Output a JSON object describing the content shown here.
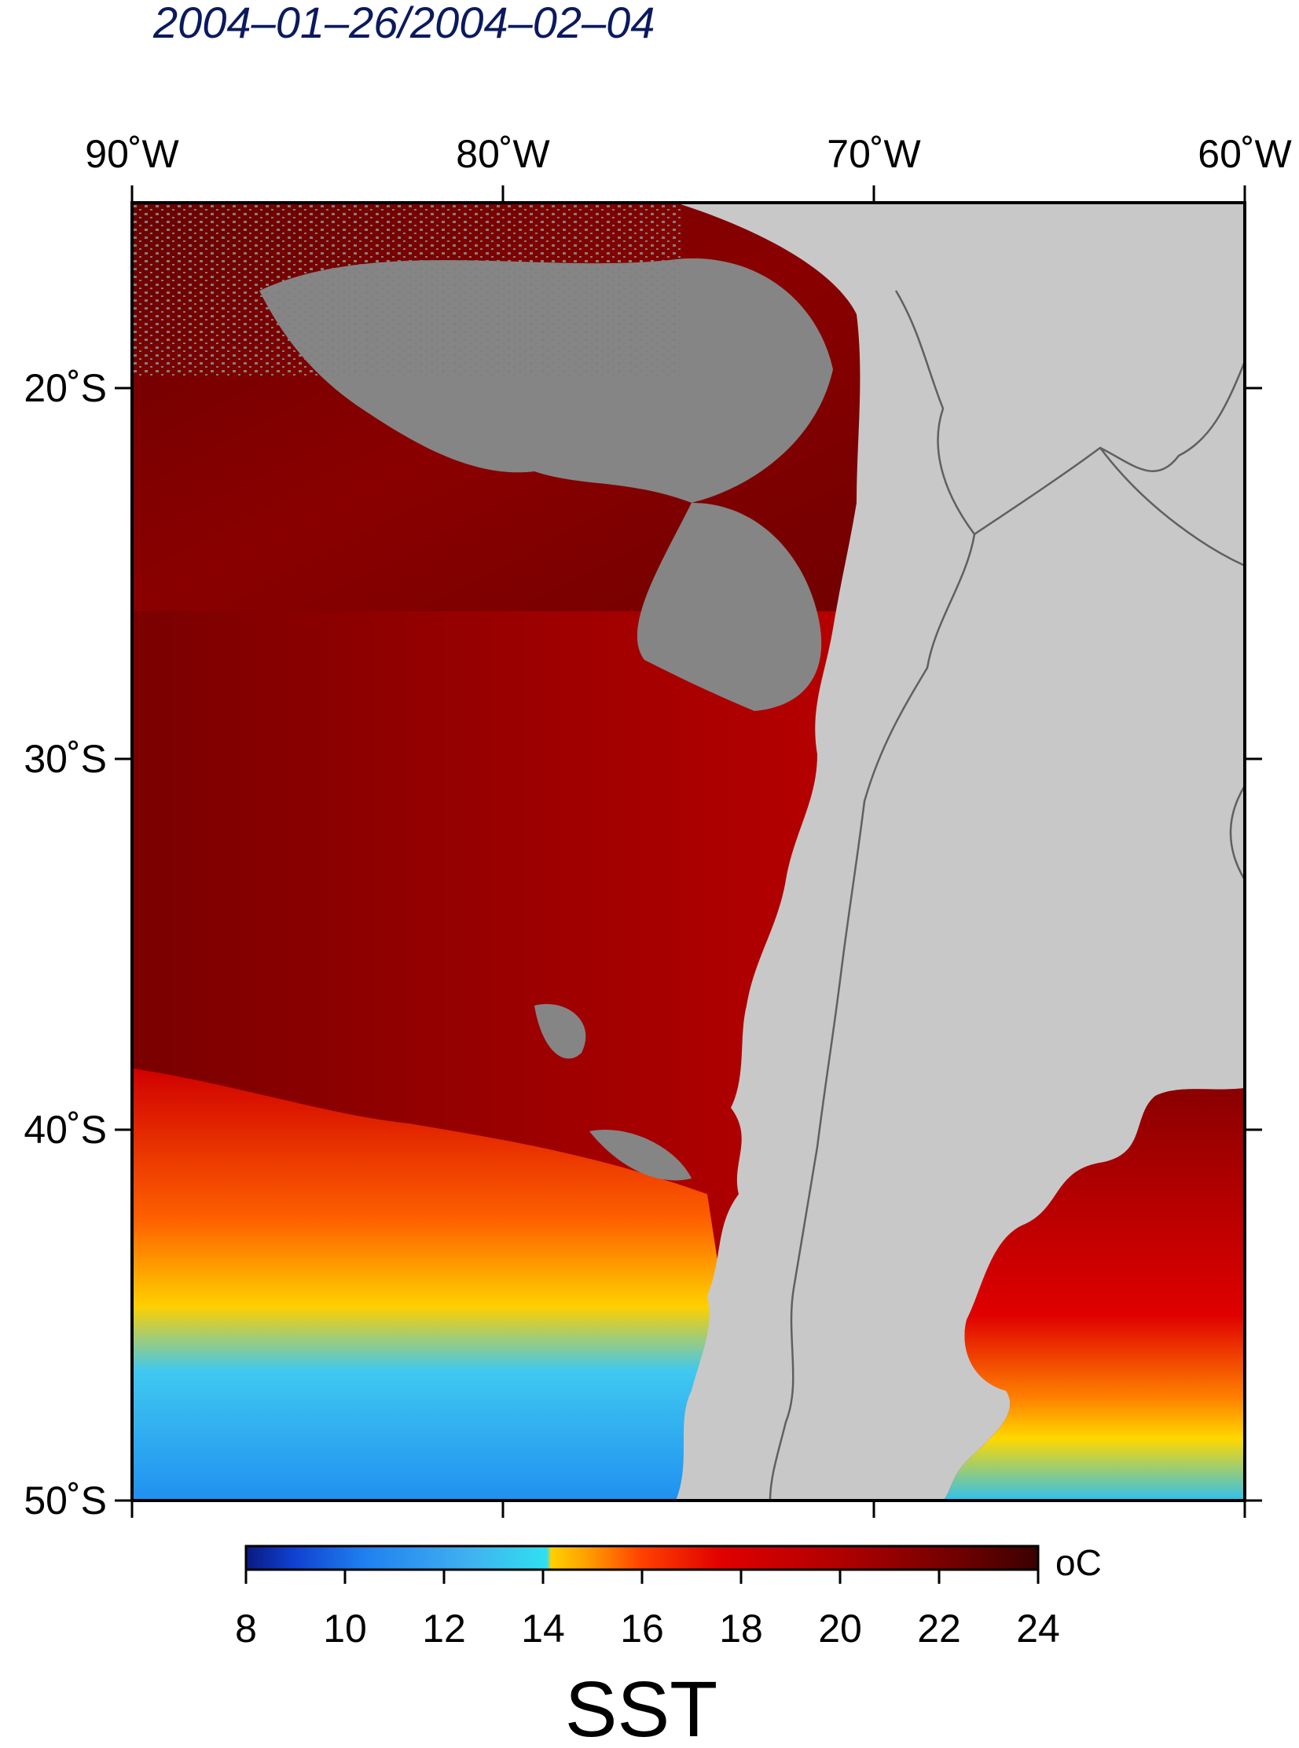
{
  "title": "2004–01–26/2004–02–04",
  "map": {
    "lon_ticks": [
      "90˚W",
      "80˚W",
      "70˚W",
      "60˚W"
    ],
    "lat_ticks": [
      "20˚S",
      "30˚S",
      "40˚S",
      "50˚S"
    ],
    "extent": {
      "lon": [
        -90,
        -60
      ],
      "lat": [
        -15,
        -50
      ]
    }
  },
  "colorbar": {
    "unit": "oC",
    "ticks": [
      "8",
      "10",
      "12",
      "14",
      "16",
      "18",
      "20",
      "22",
      "24"
    ],
    "range": [
      8,
      24
    ]
  },
  "variable_label": "SST",
  "colors": {
    "land": "#c8c8c8",
    "no_data": "#808080",
    "ocean_warm": "#b00000",
    "ocean_cold": "#30a8f0",
    "title_color": "#0b1a5e"
  }
}
